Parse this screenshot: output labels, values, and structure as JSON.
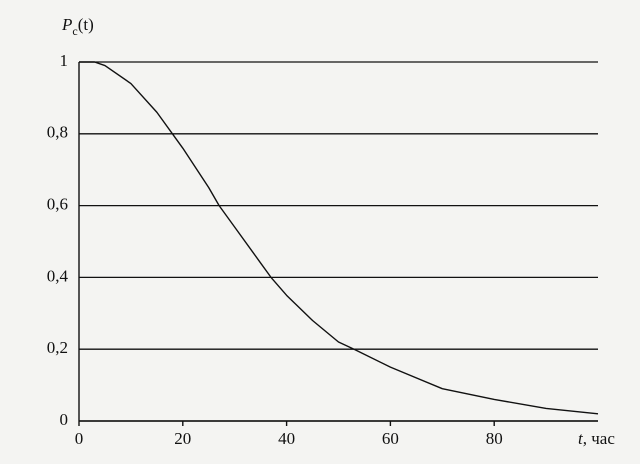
{
  "chart_data": {
    "type": "line",
    "ylabel": {
      "symbol": "P",
      "subscript": "с",
      "argument": "(t)"
    },
    "xlabel": {
      "symbol": "t",
      "unit": ", час"
    },
    "x": [
      0,
      3,
      5,
      10,
      15,
      18,
      20,
      25,
      27,
      30,
      35,
      37,
      40,
      45,
      50,
      53,
      60,
      70,
      80,
      90,
      100
    ],
    "series": [
      {
        "color": "#111111",
        "values": [
          1,
          1,
          0.99,
          0.94,
          0.86,
          0.8,
          0.76,
          0.65,
          0.6,
          0.54,
          0.44,
          0.4,
          0.35,
          0.28,
          0.22,
          0.2,
          0.15,
          0.09,
          0.06,
          0.035,
          0.02
        ]
      }
    ],
    "xlim": [
      0,
      100
    ],
    "ylim": [
      0,
      1
    ],
    "xticks": [
      0,
      20,
      40,
      60,
      80
    ],
    "yticks": [
      0,
      {
        "value": 0.2,
        "label": "0,2"
      },
      {
        "value": 0.4,
        "label": "0,4"
      },
      {
        "value": 0.6,
        "label": "0,6"
      },
      {
        "value": 0.8,
        "label": "0,8"
      },
      1
    ],
    "grid": "y"
  }
}
